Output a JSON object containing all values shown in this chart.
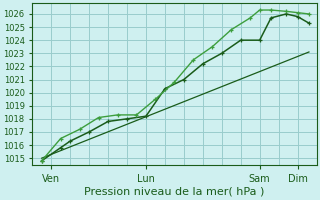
{
  "title": "Pression niveau de la mer( hPa )",
  "bg_color": "#cff0f0",
  "grid_color": "#99cccc",
  "line_color_dark": "#1a5c1a",
  "line_color_mid": "#2d7a2d",
  "line_color_light": "#3d9e3d",
  "ylim": [
    1014.5,
    1026.8
  ],
  "yticks": [
    1015,
    1016,
    1017,
    1018,
    1019,
    1020,
    1021,
    1022,
    1023,
    1024,
    1025,
    1026
  ],
  "xtick_labels": [
    "Ven",
    "Lun",
    "Sam",
    "Dim"
  ],
  "xtick_positions": [
    0.5,
    3.0,
    6.0,
    7.0
  ],
  "xlim": [
    0.0,
    7.5
  ],
  "series1_x": [
    0.25,
    0.75,
    1.0,
    1.5,
    2.0,
    2.5,
    3.0,
    3.5,
    4.0,
    4.5,
    5.0,
    5.5,
    6.0,
    6.3,
    6.7,
    7.0,
    7.3
  ],
  "series1_y": [
    1014.8,
    1015.8,
    1016.3,
    1017.0,
    1017.8,
    1018.0,
    1018.2,
    1020.3,
    1021.0,
    1022.2,
    1023.0,
    1024.0,
    1024.0,
    1025.7,
    1026.0,
    1025.8,
    1025.3
  ],
  "series2_x": [
    0.25,
    0.75,
    1.25,
    1.75,
    2.25,
    2.75,
    3.25,
    3.75,
    4.25,
    4.75,
    5.25,
    5.75,
    6.0,
    6.3,
    6.7,
    7.0,
    7.3
  ],
  "series2_y": [
    1014.8,
    1016.5,
    1017.2,
    1018.1,
    1018.3,
    1018.3,
    1019.5,
    1020.8,
    1022.5,
    1023.5,
    1024.8,
    1025.7,
    1026.3,
    1026.3,
    1026.2,
    1026.1,
    1026.0
  ],
  "series3_x": [
    0.25,
    7.3
  ],
  "series3_y": [
    1015.0,
    1023.1
  ],
  "ylabel_fontsize": 6,
  "xlabel_fontsize": 8,
  "xtick_fontsize": 7
}
